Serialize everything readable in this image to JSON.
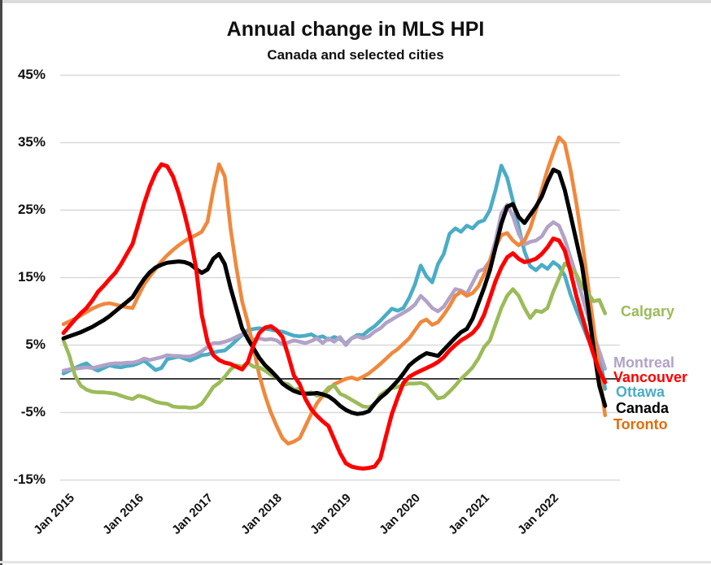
{
  "chart_data": {
    "type": "line",
    "title": "Annual change in MLS HPI",
    "subtitle": "Canada and selected cities",
    "x_tick_labels": [
      "Jan 2015",
      "Jan 2016",
      "Jan 2017",
      "Jan 2018",
      "Jan 2019",
      "Jan 2020",
      "Jan 2021",
      "Jan 2022"
    ],
    "y_tick_labels": [
      "45%",
      "35%",
      "25%",
      "15%",
      "5%",
      "-5%",
      "-15%"
    ],
    "y_ticks": [
      45,
      35,
      25,
      15,
      5,
      -5,
      -15
    ],
    "ylim": [
      -17,
      47
    ],
    "grid": "horizontal",
    "gridline_color": "#D9D9D9",
    "zero_line": true,
    "x_frequency": "monthly",
    "points_per_series": 95,
    "legend_position": "right-end-labels",
    "series": [
      {
        "name": "Ottawa",
        "color": "#4BACC6",
        "values": [
          0.8,
          1.2,
          1.6,
          2,
          2.3,
          1.6,
          1.2,
          1.6,
          2,
          1.8,
          1.7,
          1.9,
          2,
          2.3,
          2.7,
          2,
          1.3,
          1.6,
          2.9,
          3.1,
          3.3,
          3,
          2.7,
          3.1,
          3.5,
          3.6,
          3.9,
          4.1,
          4.2,
          4.9,
          5.7,
          6.5,
          7.2,
          7.4,
          7.5,
          7.4,
          7.3,
          7.1,
          7,
          6.7,
          6.4,
          6.3,
          6.4,
          6.6,
          6.1,
          6.3,
          5.8,
          6.2,
          5.9,
          5.2,
          6,
          6.5,
          6.5,
          7.2,
          7.8,
          8.6,
          9.5,
          10.4,
          10.1,
          10.5,
          12,
          14,
          16.8,
          15.2,
          14.3,
          17,
          18.5,
          21.5,
          22.3,
          21.8,
          22.7,
          22.3,
          23.2,
          23.5,
          25,
          28,
          31.6,
          29.8,
          26.4,
          22.5,
          18.9,
          16.7,
          16.1,
          16.9,
          16.3,
          17.3,
          16.7,
          15.3,
          12.5,
          10.2,
          8.1,
          6,
          4.2,
          3.9,
          -1.5
        ]
      },
      {
        "name": "Montreal",
        "color": "#B2A2C7",
        "values": [
          1.2,
          1.4,
          1.5,
          1.6,
          1.7,
          1.6,
          1.8,
          2,
          2.2,
          2.3,
          2.3,
          2.4,
          2.4,
          2.6,
          3,
          2.8,
          3,
          3.2,
          3.5,
          3.4,
          3.4,
          3.3,
          3.3,
          3.6,
          4.1,
          4.7,
          5.3,
          5.3,
          5.5,
          5.8,
          6.2,
          6.6,
          6.4,
          5.8,
          6,
          5.8,
          5.9,
          5.7,
          5.1,
          5.4,
          5.7,
          5.5,
          5.3,
          5.6,
          6,
          5.3,
          6,
          5.5,
          6.2,
          5,
          6,
          6.3,
          6,
          6.3,
          7,
          7.5,
          8.3,
          8.8,
          9.3,
          9.8,
          10.3,
          11,
          12.3,
          11.5,
          10.5,
          10,
          10.7,
          12,
          13.3,
          13.1,
          12.6,
          14.2,
          15.9,
          16.3,
          17.5,
          20.5,
          24.5,
          25.8,
          24.1,
          21.5,
          19.9,
          20.3,
          20.5,
          21.1,
          22.5,
          23.2,
          22.7,
          20.7,
          18,
          15.3,
          12.3,
          9.3,
          6.5,
          4.1,
          1.5
        ]
      },
      {
        "name": "Toronto",
        "color": "#F0883C",
        "values": [
          8.1,
          8.5,
          8.9,
          9.4,
          9.9,
          10.4,
          10.8,
          11.1,
          11.2,
          11,
          10.8,
          10.6,
          10.5,
          12.3,
          14,
          15.2,
          16.3,
          17.4,
          18.3,
          19.1,
          19.8,
          20.4,
          20.9,
          21.3,
          21.8,
          23.3,
          28,
          31.8,
          30,
          22.3,
          16.5,
          11.5,
          8.3,
          4.5,
          0.5,
          -2.5,
          -5,
          -7,
          -8.8,
          -9.6,
          -9.3,
          -8.8,
          -7,
          -5.2,
          -3.6,
          -2.5,
          -1.6,
          -0.8,
          -0.4,
          0,
          0.2,
          -0.1,
          0.3,
          0.8,
          1.5,
          2.2,
          3,
          3.8,
          4.4,
          5.2,
          6,
          7.2,
          8.4,
          8.8,
          8,
          8.4,
          9.5,
          10.8,
          12.3,
          12.9,
          12.3,
          12.7,
          13.7,
          15.5,
          17.5,
          19.5,
          21.3,
          21.6,
          20.5,
          19.8,
          20.5,
          22.3,
          25,
          28,
          31,
          33.5,
          35.8,
          34.9,
          31,
          26.1,
          20.5,
          14.1,
          7.7,
          1.2,
          -5.4
        ]
      },
      {
        "name": "Calgary",
        "color": "#9BBB59",
        "values": [
          5.7,
          3.5,
          0.5,
          -1,
          -1.6,
          -1.9,
          -2,
          -2,
          -2.1,
          -2.2,
          -2.5,
          -2.8,
          -3,
          -2.5,
          -2.7,
          -3,
          -3.4,
          -3.6,
          -3.7,
          -4.1,
          -4.2,
          -4.2,
          -4.3,
          -4.2,
          -3.7,
          -2.5,
          -1.2,
          -0.6,
          0.3,
          1.4,
          2,
          1.8,
          2.4,
          1.8,
          1.7,
          1.2,
          0.6,
          0.2,
          -0.6,
          -0.8,
          -1.6,
          -1.5,
          -2.2,
          -2,
          -2.5,
          -2.3,
          -1.3,
          -1,
          -2.2,
          -2.6,
          -3.1,
          -3.6,
          -4.1,
          -4.2,
          -3.8,
          -2.4,
          -1.8,
          -1.4,
          -1.2,
          -0.9,
          -0.7,
          -0.7,
          -0.6,
          -0.9,
          -1.9,
          -2.9,
          -2.7,
          -1.9,
          -1,
          0,
          0.8,
          1.7,
          3,
          4.7,
          5.7,
          8.1,
          10.5,
          12.3,
          13.3,
          12.3,
          10.5,
          9,
          10.1,
          9.9,
          10.5,
          12.9,
          14.9,
          17.1,
          16.5,
          15.5,
          13.7,
          12.7,
          11.5,
          11.7,
          9.7
        ]
      },
      {
        "name": "Canada",
        "color": "#000000",
        "values": [
          6,
          6.3,
          6.6,
          6.9,
          7.3,
          7.7,
          8.2,
          8.7,
          9.3,
          10,
          10.7,
          11.4,
          12.1,
          13.5,
          14.8,
          15.8,
          16.5,
          16.9,
          17.2,
          17.3,
          17.4,
          17.3,
          17,
          16.3,
          15.7,
          16.2,
          17.8,
          18.5,
          17,
          13.5,
          10.5,
          7.5,
          5.9,
          4.5,
          3.1,
          2,
          1.2,
          0.3,
          -0.7,
          -1.3,
          -1.8,
          -2.1,
          -2.2,
          -2.2,
          -2.1,
          -2.3,
          -2.6,
          -3.2,
          -4,
          -4.6,
          -5,
          -5.2,
          -5.1,
          -4.8,
          -3.7,
          -2.8,
          -2.1,
          -1.2,
          -0.3,
          0.8,
          2,
          2.7,
          3.3,
          3.8,
          3.6,
          3.4,
          4.3,
          5.2,
          6.1,
          6.9,
          7.4,
          8.9,
          11.2,
          13.5,
          16.1,
          19.5,
          23,
          25.5,
          25.9,
          24,
          23.1,
          24.3,
          25.5,
          27,
          29.2,
          31,
          30.6,
          28,
          24.3,
          20.5,
          16.7,
          11,
          4.5,
          -1,
          -4
        ]
      },
      {
        "name": "Vancouver",
        "color": "#FF0000",
        "values": [
          6.8,
          7.8,
          8.8,
          9.7,
          10.5,
          11.6,
          12.9,
          13.8,
          14.8,
          15.7,
          17,
          18.5,
          20,
          23,
          26,
          28.5,
          30.5,
          31.8,
          31.5,
          30,
          27.5,
          24.5,
          21,
          16.5,
          9.5,
          5.5,
          3.5,
          2.8,
          2.4,
          2.2,
          1.8,
          1.4,
          2.5,
          5,
          6.8,
          7.6,
          7.8,
          7.2,
          6.2,
          3.5,
          0.5,
          -0.8,
          -3,
          -4.5,
          -5.5,
          -6.3,
          -7,
          -9,
          -11,
          -12.5,
          -13,
          -13.2,
          -13.3,
          -13.2,
          -13,
          -11.8,
          -8.4,
          -5.2,
          -2.8,
          -0.6,
          0.3,
          0.8,
          1.2,
          1.6,
          2,
          2.5,
          3.2,
          4.2,
          5,
          5.7,
          6.2,
          6.8,
          7.8,
          9.5,
          12,
          14.5,
          16.5,
          18,
          18.6,
          17.8,
          17.3,
          17.5,
          17.8,
          18.5,
          19.5,
          20.8,
          20.5,
          19,
          15.9,
          12.3,
          9.3,
          6.3,
          3.6,
          1.2,
          -0.5
        ]
      }
    ],
    "series_labels": [
      {
        "text": "Calgary",
        "color": "#9BBB59"
      },
      {
        "text": "Montreal",
        "color": "#B2A2C7"
      },
      {
        "text": "Vancouver",
        "color": "#FF0000"
      },
      {
        "text": "Ottawa",
        "color": "#4BACC6"
      },
      {
        "text": "Canada",
        "color": "#000000"
      },
      {
        "text": "Toronto",
        "color": "#E36C09"
      }
    ]
  }
}
